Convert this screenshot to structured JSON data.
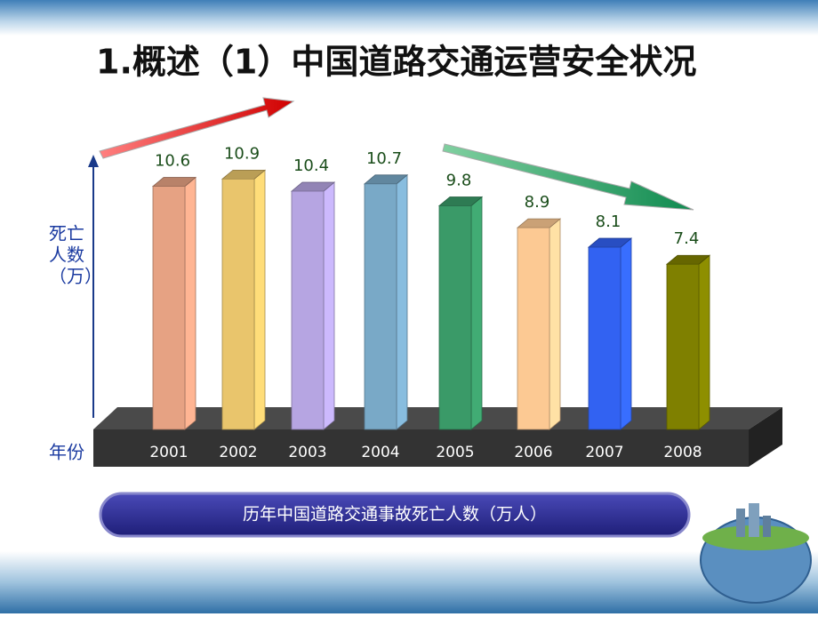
{
  "chart_data": {
    "type": "bar3d",
    "title": "1.概述（1）中国道路交通运营安全状况",
    "ylabel": [
      "死亡",
      "人数",
      "（万）"
    ],
    "xlabel": "年份",
    "caption": "历年中国道路交通事故死亡人数（万人）",
    "categories": [
      "2001",
      "2002",
      "2003",
      "2004",
      "2005",
      "2006",
      "2007",
      "2008"
    ],
    "values": [
      10.6,
      10.9,
      10.4,
      10.7,
      9.8,
      8.9,
      8.1,
      7.4
    ],
    "colors": [
      "#e6a283",
      "#e9c56c",
      "#b6a5e2",
      "#79a9c7",
      "#3a9a68",
      "#fcc993",
      "#3262f2",
      "#7f8000"
    ]
  }
}
